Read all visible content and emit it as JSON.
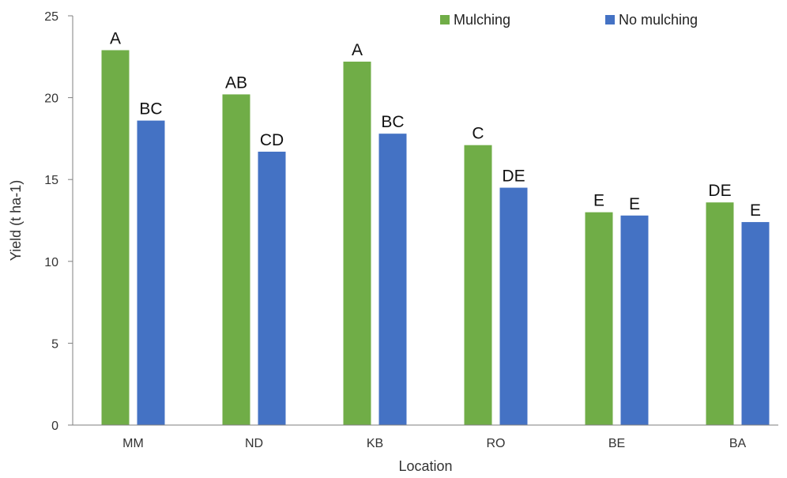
{
  "chart_data": {
    "type": "bar",
    "title": "",
    "xlabel": "Location",
    "ylabel": "Yield (t ha-1)",
    "ylim": [
      0,
      25
    ],
    "yticks": [
      0,
      5,
      10,
      15,
      20,
      25
    ],
    "grid": false,
    "legend_position": "top-right",
    "categories": [
      "MM",
      "ND",
      "KB",
      "RO",
      "BE",
      "BA"
    ],
    "series": [
      {
        "name": "Mulching",
        "color": "#70ad47",
        "values": [
          22.9,
          20.2,
          22.2,
          17.1,
          13.0,
          13.6
        ],
        "labels": [
          "A",
          "AB",
          "A",
          "C",
          "E",
          "DE"
        ]
      },
      {
        "name": "No mulching",
        "color": "#4472c4",
        "values": [
          18.6,
          16.7,
          17.8,
          14.5,
          12.8,
          12.4
        ],
        "labels": [
          "BC",
          "CD",
          "BC",
          "DE",
          "E",
          "E"
        ]
      }
    ]
  }
}
